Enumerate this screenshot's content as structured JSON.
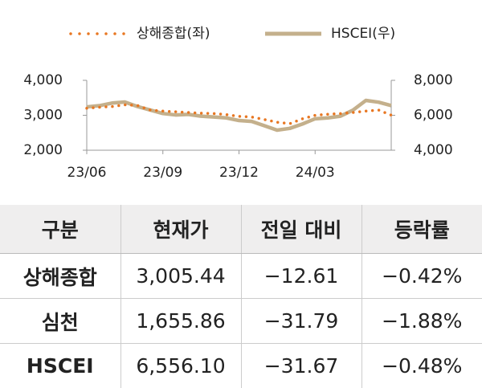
{
  "chart_data": {
    "type": "line",
    "categories": [
      "23/06",
      null,
      null,
      null,
      null,
      null,
      "23/09",
      null,
      null,
      null,
      null,
      null,
      "23/12",
      null,
      null,
      null,
      null,
      null,
      "24/03",
      null,
      null,
      null,
      null,
      null,
      null
    ],
    "series": [
      {
        "name": "상해종합(좌)",
        "color": "#e87722",
        "style": "dotted",
        "axis": "y",
        "values": [
          3200,
          3230,
          3250,
          3300,
          3280,
          3150,
          3120,
          3100,
          3080,
          3060,
          3050,
          3020,
          2970,
          2950,
          2880,
          2800,
          2760,
          2900,
          3000,
          3030,
          3050,
          3080,
          3120,
          3150,
          3005
        ]
      },
      {
        "name": "HSCEI(우)",
        "color": "#c4b08c",
        "style": "solid",
        "axis": "y2",
        "values": [
          6480,
          6550,
          6700,
          6760,
          6500,
          6300,
          6100,
          6020,
          6050,
          5950,
          5900,
          5850,
          5700,
          5650,
          5400,
          5150,
          5250,
          5500,
          5800,
          5850,
          5950,
          6300,
          6850,
          6750,
          6556
        ]
      }
    ],
    "ylim": [
      2000,
      4000
    ],
    "yticks": [
      {
        "value": 4000,
        "label": "4,000"
      },
      {
        "value": 3000,
        "label": "3,000"
      },
      {
        "value": 2000,
        "label": "2,000"
      }
    ],
    "y2lim": [
      4000,
      8000
    ],
    "y2ticks": [
      {
        "value": 8000,
        "label": "8,000"
      },
      {
        "value": 6000,
        "label": "6,000"
      },
      {
        "value": 4000,
        "label": "4,000"
      }
    ],
    "legend": "top"
  },
  "table": {
    "header": [
      "구분",
      "현재가",
      "전일 대비",
      "등락률"
    ],
    "rows": [
      [
        "상해종합",
        "3,005.44",
        "−12.61",
        "−0.42%"
      ],
      [
        "심천",
        "1,655.86",
        "−31.79",
        "−1.88%"
      ],
      [
        "HSCEI",
        "6,556.10",
        "−31.67",
        "−0.48%"
      ]
    ]
  }
}
